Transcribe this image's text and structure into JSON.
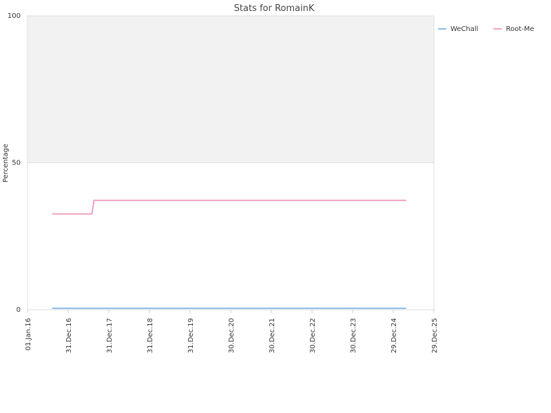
{
  "chart_data": {
    "type": "line",
    "title": "Stats for RomainK",
    "y_label": "Percentage",
    "xlim": [
      "2016-01-01",
      "2025-12-29"
    ],
    "xticks": [
      {
        "value": "2016-01-01",
        "label": "01.Jan.16"
      },
      {
        "value": "2016-12-31",
        "label": "31.Dec.16"
      },
      {
        "value": "2017-12-31",
        "label": "31.Dec.17"
      },
      {
        "value": "2018-12-31",
        "label": "31.Dec.18"
      },
      {
        "value": "2019-12-31",
        "label": "31.Dec.19"
      },
      {
        "value": "2020-12-30",
        "label": "30.Dec.20"
      },
      {
        "value": "2021-12-30",
        "label": "30.Dec.21"
      },
      {
        "value": "2022-12-30",
        "label": "30.Dec.22"
      },
      {
        "value": "2023-12-30",
        "label": "30.Dec.23"
      },
      {
        "value": "2024-12-29",
        "label": "29.Dec.24"
      },
      {
        "value": "2025-12-29",
        "label": "29.Dec.25"
      }
    ],
    "ylim": [
      0,
      100
    ],
    "yticks": [
      0,
      50,
      100
    ],
    "plot_bands": [
      {
        "from": 50,
        "to": 100,
        "color": "#f2f2f2"
      }
    ],
    "series": [
      {
        "name": "WeChall",
        "color": "#8bbbe8",
        "x": [
          "2016-08-10",
          "2025-04-25"
        ],
        "values": [
          0.5,
          0.5
        ]
      },
      {
        "name": "Root-Me",
        "color": "#f0a0c0",
        "x": [
          "2016-08-10",
          "2017-08-01",
          "2017-08-20",
          "2025-04-25"
        ],
        "values": [
          32.6,
          32.6,
          37.2,
          37.2
        ]
      }
    ]
  }
}
